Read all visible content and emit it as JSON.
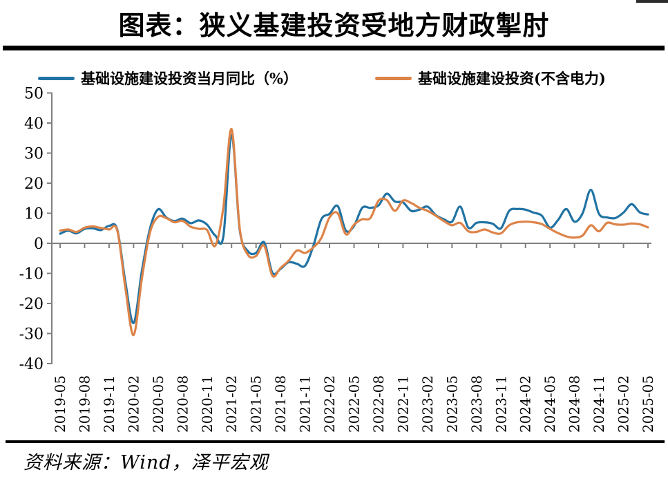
{
  "title": "图表：狭义基建投资受地方财政掣肘",
  "source_note": "资料来源：Wind，泽平宏观",
  "legend": [
    {
      "label": "基础设施建设投资当月同比（%）",
      "color": "#2173a3"
    },
    {
      "label": "基础设施建设投资(不含电力)",
      "color": "#dd8348"
    }
  ],
  "chart_data": {
    "type": "line",
    "title": "图表：狭义基建投资受地方财政掣肘",
    "xlabel": "",
    "ylabel": "",
    "ylim": [
      -40,
      50
    ],
    "y_ticks": [
      50,
      40,
      30,
      20,
      10,
      0,
      -10,
      -20,
      -30,
      -40
    ],
    "axis_color": "#808080",
    "grid": false,
    "legend_position": "top",
    "x_tick_labels": [
      "2019-05",
      "2019-08",
      "2019-11",
      "2020-02",
      "2020-05",
      "2020-08",
      "2020-11",
      "2021-02",
      "2021-05",
      "2021-08",
      "2021-11",
      "2022-02",
      "2022-05",
      "2022-08",
      "2022-11",
      "2023-02",
      "2023-05",
      "2023-08",
      "2023-11",
      "2024-02",
      "2024-05",
      "2024-08",
      "2024-11",
      "2025-02",
      "2025-05"
    ],
    "months": [
      "2019-05",
      "2019-06",
      "2019-07",
      "2019-08",
      "2019-09",
      "2019-10",
      "2019-11",
      "2019-12",
      "2020-01",
      "2020-02",
      "2020-03",
      "2020-04",
      "2020-05",
      "2020-06",
      "2020-07",
      "2020-08",
      "2020-09",
      "2020-10",
      "2020-11",
      "2020-12",
      "2021-01",
      "2021-02",
      "2021-03",
      "2021-04",
      "2021-05",
      "2021-06",
      "2021-07",
      "2021-08",
      "2021-09",
      "2021-10",
      "2021-11",
      "2021-12",
      "2022-01",
      "2022-02",
      "2022-03",
      "2022-04",
      "2022-05",
      "2022-06",
      "2022-07",
      "2022-08",
      "2022-09",
      "2022-10",
      "2022-11",
      "2022-12",
      "2023-01",
      "2023-02",
      "2023-03",
      "2023-04",
      "2023-05",
      "2023-06",
      "2023-07",
      "2023-08",
      "2023-09",
      "2023-10",
      "2023-11",
      "2023-12",
      "2024-01",
      "2024-02",
      "2024-03",
      "2024-04",
      "2024-05",
      "2024-06",
      "2024-07",
      "2024-08",
      "2024-09",
      "2024-10",
      "2024-11",
      "2024-12",
      "2025-01",
      "2025-02",
      "2025-03",
      "2025-04",
      "2025-05"
    ],
    "series": [
      {
        "name": "基础设施建设投资当月同比（%）",
        "color": "#2173a3",
        "values": [
          3.2,
          4.2,
          3.3,
          4.8,
          5.0,
          4.4,
          5.8,
          4.6,
          -13,
          -26.5,
          -9.5,
          4.8,
          11.3,
          8.6,
          7.4,
          8.2,
          6.7,
          7.6,
          6.2,
          2.6,
          2.4,
          36,
          4.5,
          -2.6,
          -3.2,
          0.3,
          -9.8,
          -8.5,
          -6.3,
          -6.8,
          -7.5,
          -1.0,
          8.0,
          9.8,
          12.4,
          4.2,
          5.8,
          11.8,
          11.8,
          12.6,
          16.5,
          13.9,
          13.6,
          10.8,
          11.2,
          12.2,
          9.4,
          8.0,
          7.2,
          12.2,
          5.2,
          6.8,
          7.0,
          6.5,
          5.0,
          10.8,
          11.4,
          11.2,
          10.2,
          9.2,
          5.2,
          7.8,
          11.4,
          7.2,
          10.0,
          17.8,
          9.8,
          8.6,
          8.4,
          10.2,
          13.0,
          10.3,
          9.6
        ]
      },
      {
        "name": "基础设施建设投资(不含电力)",
        "color": "#dd8348",
        "values": [
          4.2,
          4.6,
          3.8,
          5.2,
          5.6,
          5.1,
          4.6,
          4.3,
          -15,
          -30.5,
          -12,
          3.5,
          8.8,
          8.4,
          7.0,
          7.5,
          5.5,
          4.8,
          4.4,
          -0.8,
          12,
          38,
          5.0,
          -3.8,
          -4.2,
          -0.8,
          -10.8,
          -8.2,
          -5.8,
          -2.4,
          -3.2,
          -1.4,
          1.8,
          8.6,
          10.0,
          3.0,
          6.2,
          8.0,
          8.4,
          14.2,
          14.4,
          10.8,
          14.2,
          13.4,
          11.8,
          10.8,
          9.2,
          7.4,
          6.0,
          6.8,
          4.0,
          3.8,
          4.6,
          3.6,
          3.3,
          6.0,
          7.0,
          7.2,
          7.0,
          6.4,
          4.8,
          3.4,
          2.3,
          1.9,
          2.6,
          6.0,
          4.0,
          6.8,
          6.3,
          6.2,
          6.6,
          6.3,
          5.3
        ]
      }
    ]
  }
}
